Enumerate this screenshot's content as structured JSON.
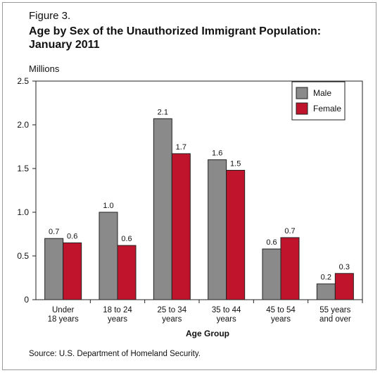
{
  "figure_label": "Figure 3.",
  "title_line1": "Age by Sex of the Unauthorized Immigrant Population:",
  "title_line2": "January 2011",
  "units_label": "Millions",
  "source": "Source: U.S. Department of Homeland Security.",
  "chart_data": {
    "type": "bar",
    "categories": [
      [
        "Under",
        "18 years"
      ],
      [
        "18 to 24",
        "years"
      ],
      [
        "25 to 34",
        "years"
      ],
      [
        "35 to 44",
        "years"
      ],
      [
        "45 to 54",
        "years"
      ],
      [
        "55 years",
        "and over"
      ]
    ],
    "series": [
      {
        "name": "Male",
        "color": "#8a8a8a",
        "values": [
          0.7,
          1.0,
          2.07,
          1.6,
          0.58,
          0.18
        ],
        "labels": [
          "0.7",
          "1.0",
          "2.1",
          "1.6",
          "0.6",
          "0.2"
        ]
      },
      {
        "name": "Female",
        "color": "#c0142c",
        "values": [
          0.65,
          0.62,
          1.67,
          1.48,
          0.71,
          0.3
        ],
        "labels": [
          "0.6",
          "0.6",
          "1.7",
          "1.5",
          "0.7",
          "0.3"
        ]
      }
    ],
    "xlabel": "Age Group",
    "ylabel": "Millions",
    "ylim": [
      0,
      2.5
    ],
    "yticks": [
      "0",
      "0.5",
      "1.0",
      "1.5",
      "2.0",
      "2.5"
    ],
    "legend_position": "top-right",
    "grid": false
  }
}
